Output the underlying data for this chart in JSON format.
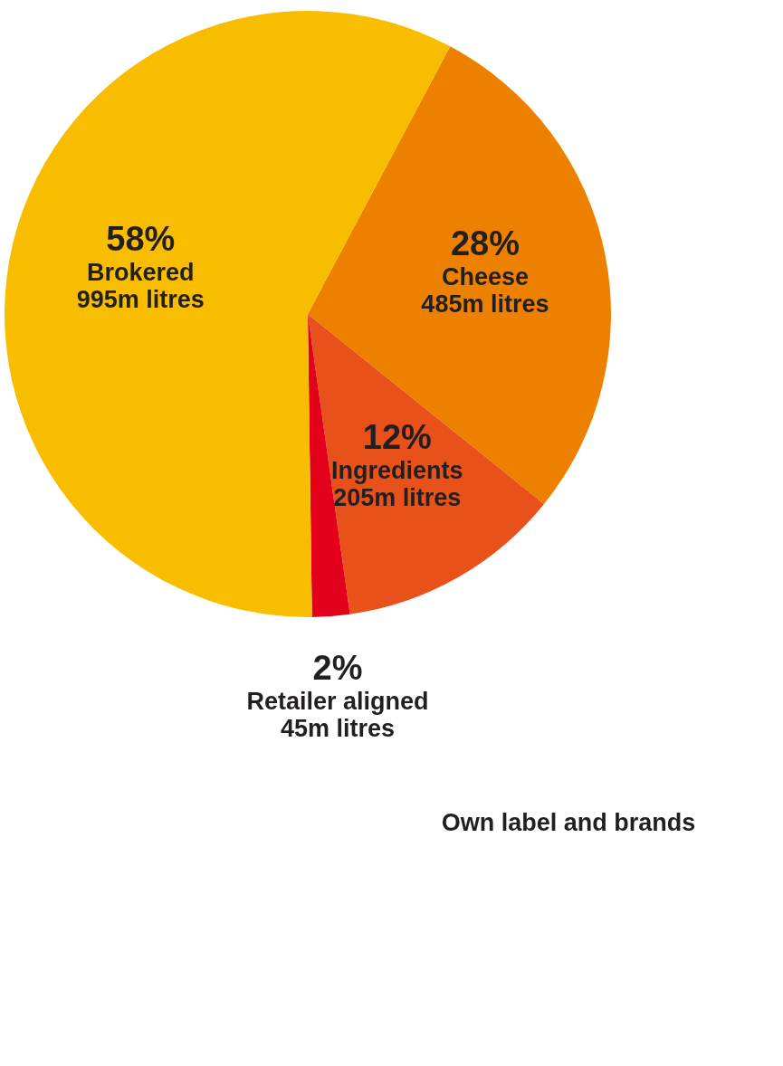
{
  "chart_data": {
    "type": "pie",
    "categories": [
      "Cheese",
      "Ingredients",
      "Retailer aligned",
      "Brokered"
    ],
    "values": [
      28,
      12,
      2,
      58
    ],
    "colors": [
      "#ee8000",
      "#e8521a",
      "#e2001a",
      "#f9bd00"
    ],
    "value_labels": [
      "28%",
      "12%",
      "2%",
      "58%"
    ],
    "annotations": [
      {
        "text": "485m litres",
        "x": "Cheese"
      },
      {
        "text": "205m litres",
        "x": "Ingredients"
      },
      {
        "text": "45m litres",
        "x": "Retailer aligned"
      },
      {
        "text": "995m litres",
        "x": "Brokered"
      },
      "Own label and brands"
    ]
  }
}
